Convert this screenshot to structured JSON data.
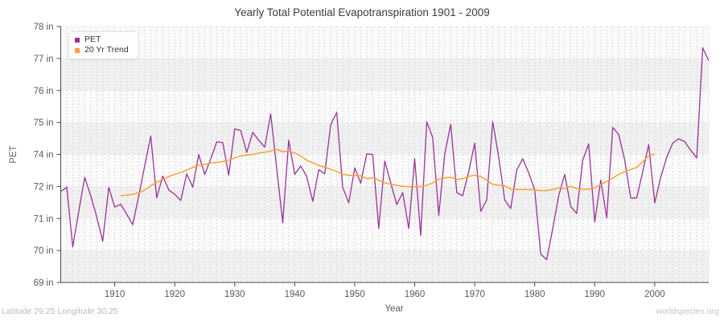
{
  "footer": {
    "left": "Latitude 29.25 Longitude 30.25",
    "right": "worldspecies.org"
  },
  "chart_data": {
    "type": "line",
    "title": "Yearly Total Potential Evapotranspiration 1901 - 2009",
    "xlabel": "Year",
    "ylabel": "PET",
    "unit": "in",
    "x_start": 1901,
    "x_end": 2009,
    "ylim": [
      69,
      78
    ],
    "grid": true,
    "legend_position": "top-left",
    "y_tick_labels": [
      "78 in",
      "77 in",
      "76 in",
      "75 in",
      "74 in",
      "72 in",
      "71 in",
      "70 in",
      "69 in"
    ],
    "x_ticks": [
      1910,
      1920,
      1930,
      1940,
      1950,
      1960,
      1970,
      1980,
      1990,
      2000
    ],
    "series": [
      {
        "name": "PET",
        "color": "#993399",
        "start_year": 1901,
        "values": [
          72.2,
          72.35,
          70.25,
          71.5,
          72.7,
          72.05,
          71.3,
          70.45,
          72.35,
          71.65,
          71.75,
          71.4,
          71.03,
          72.05,
          73.1,
          74.15,
          71.97,
          72.74,
          72.25,
          72.1,
          71.88,
          72.82,
          72.35,
          73.5,
          72.8,
          73.35,
          73.94,
          73.92,
          72.77,
          74.4,
          74.34,
          73.57,
          74.28,
          74.0,
          73.76,
          74.93,
          73.0,
          71.1,
          74.0,
          72.8,
          73.1,
          72.72,
          71.85,
          72.96,
          72.82,
          74.55,
          74.98,
          72.35,
          71.8,
          73.03,
          72.49,
          73.52,
          73.5,
          70.9,
          73.27,
          72.5,
          71.74,
          72.16,
          70.9,
          73.35,
          70.65,
          74.65,
          74.1,
          71.36,
          73.5,
          74.56,
          72.16,
          72.05,
          72.9,
          73.9,
          71.5,
          71.9,
          74.65,
          73.4,
          71.9,
          71.6,
          72.95,
          73.35,
          72.85,
          72.25,
          70.0,
          69.8,
          70.9,
          72.05,
          72.8,
          71.67,
          71.43,
          73.3,
          73.87,
          71.13,
          72.6,
          71.27,
          74.45,
          74.2,
          73.3,
          71.97,
          71.97,
          72.9,
          73.85,
          71.8,
          72.7,
          73.4,
          73.9,
          74.05,
          73.95,
          73.65,
          73.38,
          77.25,
          76.8
        ]
      },
      {
        "name": "20 Yr Trend",
        "color": "#FFA033",
        "start_year": 1911,
        "values": [
          72.05,
          72.07,
          72.1,
          72.15,
          72.25,
          72.4,
          72.52,
          72.62,
          72.72,
          72.8,
          72.87,
          72.95,
          73.05,
          73.12,
          73.15,
          73.2,
          73.22,
          73.25,
          73.3,
          73.38,
          73.45,
          73.48,
          73.5,
          73.55,
          73.58,
          73.62,
          73.68,
          73.6,
          73.62,
          73.55,
          73.45,
          73.3,
          73.2,
          73.12,
          73.05,
          72.98,
          72.9,
          72.8,
          72.77,
          72.76,
          72.75,
          72.65,
          72.68,
          72.6,
          72.5,
          72.45,
          72.42,
          72.38,
          72.37,
          72.37,
          72.37,
          72.42,
          72.5,
          72.63,
          72.68,
          72.7,
          72.62,
          72.65,
          72.73,
          72.77,
          72.72,
          72.6,
          72.45,
          72.42,
          72.4,
          72.28,
          72.27,
          72.27,
          72.27,
          72.25,
          72.23,
          72.23,
          72.27,
          72.33,
          72.3,
          72.38,
          72.3,
          72.28,
          72.28,
          72.32,
          72.45,
          72.55,
          72.67,
          72.8,
          72.9,
          72.97,
          73.05,
          73.25,
          73.45,
          73.52
        ]
      }
    ]
  }
}
